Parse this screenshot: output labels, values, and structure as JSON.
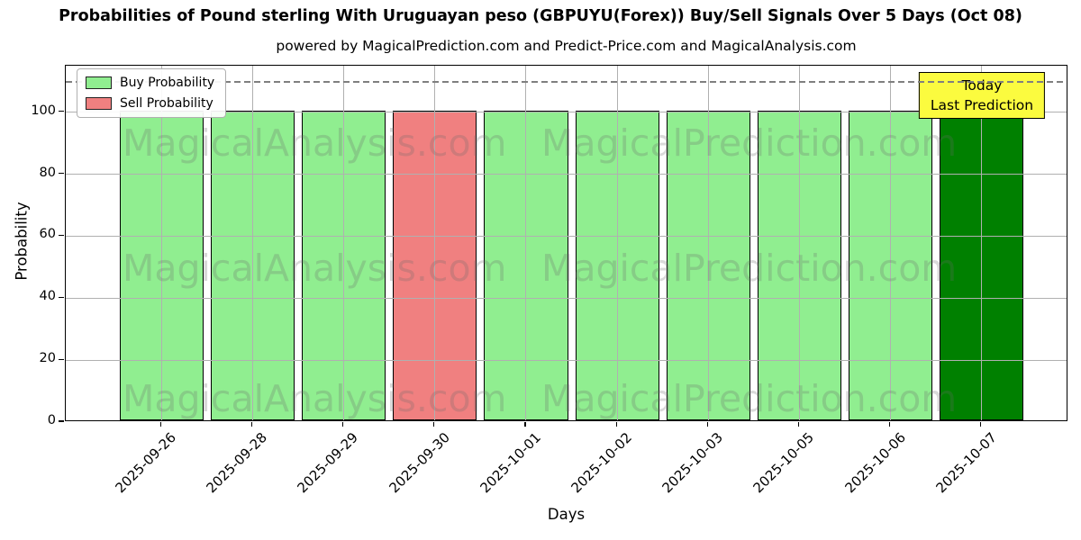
{
  "figure": {
    "title": "Probabilities of Pound sterling With Uruguayan peso (GBPUYU(Forex)) Buy/Sell Signals Over 5 Days (Oct 08)",
    "subtitle": "powered by MagicalPrediction.com and Predict-Price.com and MagicalAnalysis.com"
  },
  "axes": {
    "xlabel": "Days",
    "ylabel": "Probability"
  },
  "legend": {
    "items": [
      {
        "label": "Buy Probability",
        "color": "#90ee90"
      },
      {
        "label": "Sell Probability",
        "color": "#f08080"
      }
    ]
  },
  "annotation": {
    "lines": [
      "Today",
      "Last Prediction"
    ],
    "bg": "#fbfb3f"
  },
  "watermarks": {
    "left": "MagicalAnalysis.com",
    "right": "MagicalPrediction.com",
    "color": "rgba(105,105,105,0.25)"
  },
  "colors": {
    "buy": "#90ee90",
    "sell": "#f08080",
    "today": "#008000",
    "bar_edge": "#000000",
    "grid": "#b0b0b0",
    "dashed_line": "#7f7f7f",
    "legend_border": "#b0b0b0"
  },
  "chart_data": {
    "type": "bar",
    "title": "Probabilities of Pound sterling With Uruguayan peso (GBPUYU(Forex)) Buy/Sell Signals Over 5 Days (Oct 08)",
    "xlabel": "Days",
    "ylabel": "Probability",
    "categories": [
      "2025-09-26",
      "2025-09-28",
      "2025-09-29",
      "2025-09-30",
      "2025-10-01",
      "2025-10-02",
      "2025-10-03",
      "2025-10-05",
      "2025-10-06",
      "2025-10-07"
    ],
    "series": [
      {
        "name": "Buy Probability",
        "color": "#90ee90",
        "values": [
          100,
          100,
          100,
          0,
          100,
          100,
          100,
          100,
          100,
          100
        ]
      },
      {
        "name": "Sell Probability",
        "color": "#f08080",
        "values": [
          0,
          0,
          0,
          100,
          0,
          0,
          0,
          0,
          0,
          0
        ]
      }
    ],
    "bars": [
      {
        "date": "2025-09-26",
        "value": 100,
        "signal": "buy",
        "color": "#90ee90",
        "today": false
      },
      {
        "date": "2025-09-28",
        "value": 100,
        "signal": "buy",
        "color": "#90ee90",
        "today": false
      },
      {
        "date": "2025-09-29",
        "value": 100,
        "signal": "buy",
        "color": "#90ee90",
        "today": false
      },
      {
        "date": "2025-09-30",
        "value": 100,
        "signal": "sell",
        "color": "#f08080",
        "today": false
      },
      {
        "date": "2025-10-01",
        "value": 100,
        "signal": "buy",
        "color": "#90ee90",
        "today": false
      },
      {
        "date": "2025-10-02",
        "value": 100,
        "signal": "buy",
        "color": "#90ee90",
        "today": false
      },
      {
        "date": "2025-10-03",
        "value": 100,
        "signal": "buy",
        "color": "#90ee90",
        "today": false
      },
      {
        "date": "2025-10-05",
        "value": 100,
        "signal": "buy",
        "color": "#90ee90",
        "today": false
      },
      {
        "date": "2025-10-06",
        "value": 100,
        "signal": "buy",
        "color": "#90ee90",
        "today": false
      },
      {
        "date": "2025-10-07",
        "value": 100,
        "signal": "buy",
        "color": "#008000",
        "today": true
      }
    ],
    "ylim": [
      0,
      115
    ],
    "yticks": [
      0,
      20,
      40,
      60,
      80,
      100
    ],
    "dashed_line_y": 110,
    "grid": true,
    "legend_position": "upper left",
    "annotation_text": "Today Last Prediction"
  }
}
